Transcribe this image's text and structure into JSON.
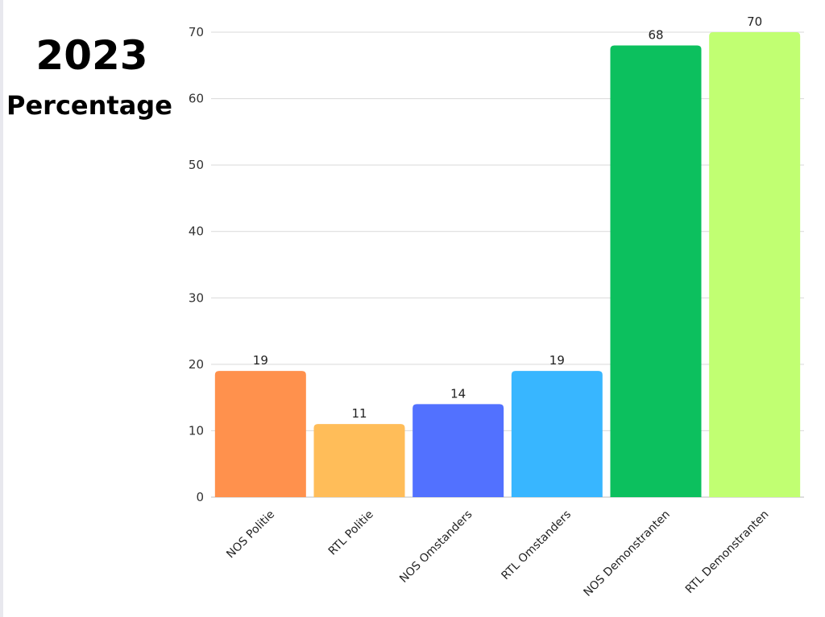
{
  "header": {
    "year": "2023",
    "subtitle": "Percentage"
  },
  "chart_data": {
    "type": "bar",
    "title": "2023",
    "subtitle": "Percentage",
    "xlabel": "",
    "ylabel": "",
    "ylim": [
      0,
      70
    ],
    "yticks": [
      0,
      10,
      20,
      30,
      40,
      50,
      60,
      70
    ],
    "grid": true,
    "categories": [
      "NOS Politie",
      "RTL Politie",
      "NOS Omstanders",
      "RTL Omstanders",
      "NOS Demonstranten",
      "RTL Demonstranten"
    ],
    "values": [
      19,
      11,
      14,
      19,
      68,
      70
    ],
    "colors": [
      "#FF914D",
      "#FFBD59",
      "#5271FF",
      "#38B6FF",
      "#0CC05E",
      "#C1FF72"
    ]
  }
}
